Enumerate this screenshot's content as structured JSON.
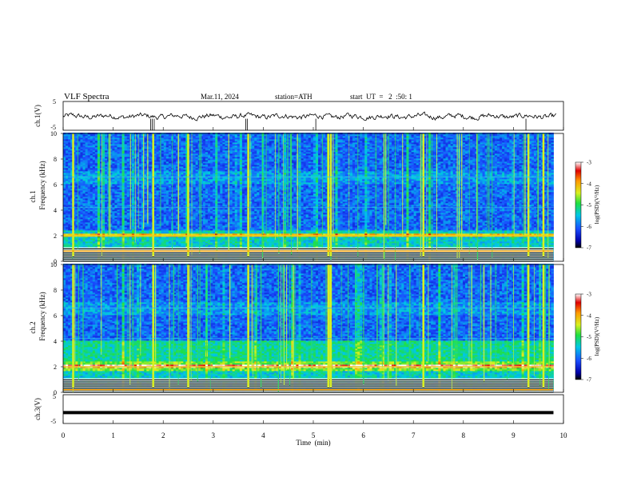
{
  "header": {
    "title": "VLF  Spectra",
    "date": "Mar.11, 2024",
    "station": "station=ATH",
    "start_ut": "start  UT  =   2  :50: 1"
  },
  "chart_data": [
    {
      "type": "line",
      "panel": "ch1-waveform",
      "ylabel": "ch.1(V)",
      "yticks": [
        "5",
        "-5"
      ],
      "ylim": [
        -5,
        5
      ],
      "x_range": [
        0,
        10
      ]
    },
    {
      "type": "heatmap",
      "panel": "ch1-spectrogram",
      "ylabel_line1": "ch.1",
      "ylabel_line2": "Frequency  (kHz)",
      "yticks": [
        "0",
        "2",
        "4",
        "6",
        "8",
        "10"
      ],
      "ylim": [
        0,
        10
      ],
      "x_range": [
        0,
        9.8
      ],
      "colorbar": {
        "label": "log(PSD)(V²/Hz)",
        "ticks": [
          "-3",
          "-4",
          "-5",
          "-6",
          "-7"
        ],
        "range": [
          -7,
          -3
        ]
      },
      "features": {
        "band_khz": 2.0,
        "strong_band_khz": 0.8,
        "bright_vertical_bursts_min": [
          0.2,
          1.8,
          2.5,
          3.7,
          5.3,
          5.35,
          7.2,
          9.3,
          9.6
        ]
      }
    },
    {
      "type": "heatmap",
      "panel": "ch2-spectrogram",
      "ylabel_line1": "ch.2",
      "ylabel_line2": "Frequency  (kHz)",
      "yticks": [
        "0",
        "2",
        "4",
        "6",
        "8",
        "10"
      ],
      "ylim": [
        0,
        10
      ],
      "x_range": [
        0,
        9.8
      ],
      "colorbar": {
        "label": "log(PSD)(V²/Hz)",
        "ticks": [
          "-3",
          "-4",
          "-5",
          "-6",
          "-7"
        ],
        "range": [
          -7,
          -3
        ]
      },
      "features": {
        "band_khz": 2.0,
        "strong_band_khz": 0.2,
        "bright_vertical_bursts_min": [
          0.2,
          1.8,
          2.5,
          3.7,
          5.3,
          5.35,
          7.2,
          9.3,
          9.6
        ]
      }
    },
    {
      "type": "line",
      "panel": "ch3-waveform",
      "ylabel": "ch.3(V)",
      "yticks": [
        "5",
        "-5"
      ],
      "ylim": [
        -5,
        5
      ],
      "x_range": [
        0,
        9.8
      ],
      "values_constant": -1.2
    }
  ],
  "xaxis": {
    "label": "Time  (min)",
    "ticks": [
      "0",
      "1",
      "2",
      "3",
      "4",
      "5",
      "6",
      "7",
      "8",
      "9",
      "10"
    ],
    "range": [
      0,
      10
    ]
  },
  "colors": {
    "ink": "#000000",
    "colormap": [
      "#000000",
      "#0000aa",
      "#1a4dff",
      "#00c8e6",
      "#20e040",
      "#d8f020",
      "#ff9a00",
      "#e00000",
      "#ffffff"
    ]
  }
}
